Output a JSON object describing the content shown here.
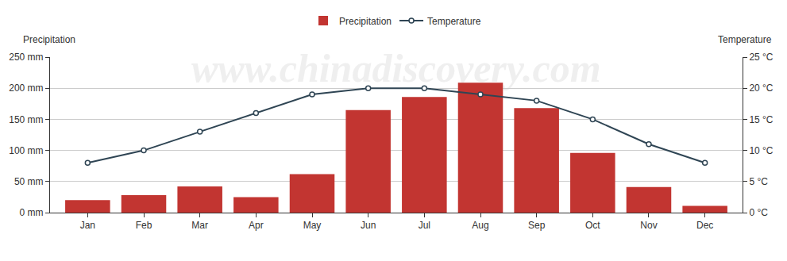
{
  "chart_data": {
    "type": "bar",
    "categories": [
      "Jan",
      "Feb",
      "Mar",
      "Apr",
      "May",
      "Jun",
      "Jul",
      "Aug",
      "Sep",
      "Oct",
      "Nov",
      "Dec"
    ],
    "series": [
      {
        "name": "Precipitation",
        "type": "bar",
        "color": "#c23531",
        "values": [
          20,
          28,
          42,
          25,
          62,
          165,
          186,
          209,
          168,
          96,
          41,
          11
        ]
      },
      {
        "name": "Temperature",
        "type": "line",
        "axis": "y2",
        "color": "#2f4554",
        "marker": "circle",
        "values": [
          8,
          10,
          13,
          16,
          19,
          20,
          20,
          19,
          18,
          15,
          11,
          8
        ]
      }
    ],
    "ylabel": "Precipitation",
    "y2label": "Temperature",
    "ylim": [
      0,
      250
    ],
    "yticks": [
      {
        "value": 0,
        "label": "0 mm"
      },
      {
        "value": 50,
        "label": "50 mm"
      },
      {
        "value": 100,
        "label": "100 mm"
      },
      {
        "value": 150,
        "label": "150 mm"
      },
      {
        "value": 200,
        "label": "200 mm"
      },
      {
        "value": 250,
        "label": "250 mm"
      }
    ],
    "y2lim": [
      0,
      25
    ],
    "y2ticks": [
      {
        "value": 0,
        "label": "0 °C"
      },
      {
        "value": 5,
        "label": "5 °C"
      },
      {
        "value": 10,
        "label": "10 °C"
      },
      {
        "value": 15,
        "label": "15 °C"
      },
      {
        "value": 20,
        "label": "20 °C"
      },
      {
        "value": 25,
        "label": "25 °C"
      }
    ],
    "grid": true,
    "legend": "top",
    "annotations": [
      "www.chinadiscovery.com"
    ]
  }
}
